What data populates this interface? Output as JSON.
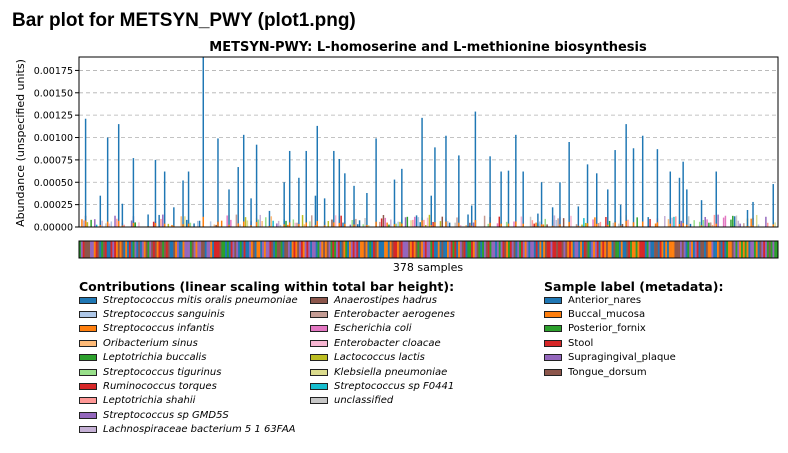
{
  "page_title": "Bar plot for METSYN_PWY (plot1.png)",
  "chart_data": {
    "type": "bar",
    "title": "METSYN-PWY: L-homoserine and L-methionine biosynthesis",
    "ylabel": "Abundance (unspecified units)",
    "xlabel": "378 samples",
    "ylim": [
      0,
      0.0019
    ],
    "yticks": [
      "0.00000",
      "0.00025",
      "0.00050",
      "0.00075",
      "0.00100",
      "0.00125",
      "0.00150",
      "0.00175"
    ],
    "ytick_values": [
      0,
      0.00025,
      0.0005,
      0.00075,
      0.001,
      0.00125,
      0.0015,
      0.00175
    ],
    "grid": "horizontal dashed",
    "n_samples": 378,
    "tall_bars_note": "approximate values of the dominant (Streptococcus mitis oralis pneumoniae) component; x as sample index 0-377",
    "tall_bars": [
      [
        2,
        0.00121
      ],
      [
        10,
        0.00035
      ],
      [
        14,
        0.001
      ],
      [
        20,
        0.00115
      ],
      [
        22,
        0.00026
      ],
      [
        28,
        0.00077
      ],
      [
        36,
        0.00014
      ],
      [
        40,
        0.00075
      ],
      [
        45,
        0.00062
      ],
      [
        50,
        0.00022
      ],
      [
        55,
        0.00052
      ],
      [
        58,
        0.00062
      ],
      [
        66,
        0.0019
      ],
      [
        74,
        0.00099
      ],
      [
        80,
        0.00042
      ],
      [
        85,
        0.00067
      ],
      [
        88,
        0.00103
      ],
      [
        92,
        0.00032
      ],
      [
        95,
        0.00092
      ],
      [
        102,
        0.00018
      ],
      [
        110,
        0.0005
      ],
      [
        113,
        0.00085
      ],
      [
        118,
        0.00055
      ],
      [
        122,
        0.00085
      ],
      [
        127,
        0.00035
      ],
      [
        128,
        0.00113
      ],
      [
        132,
        0.00032
      ],
      [
        137,
        0.00085
      ],
      [
        140,
        0.00076
      ],
      [
        143,
        0.0006
      ],
      [
        148,
        0.00046
      ],
      [
        155,
        0.00038
      ],
      [
        160,
        0.00099
      ],
      [
        170,
        0.00053
      ],
      [
        174,
        0.00065
      ],
      [
        182,
        0.00013
      ],
      [
        185,
        0.00122
      ],
      [
        190,
        0.00035
      ],
      [
        192,
        0.00089
      ],
      [
        198,
        0.00102
      ],
      [
        205,
        0.0008
      ],
      [
        212,
        0.00024
      ],
      [
        214,
        0.00129
      ],
      [
        222,
        0.00079
      ],
      [
        228,
        0.00062
      ],
      [
        232,
        0.00063
      ],
      [
        236,
        0.00103
      ],
      [
        240,
        0.00062
      ],
      [
        248,
        0.00015
      ],
      [
        250,
        0.0005
      ],
      [
        256,
        0.00022
      ],
      [
        260,
        0.0005
      ],
      [
        265,
        0.00095
      ],
      [
        270,
        0.00023
      ],
      [
        275,
        0.0007
      ],
      [
        280,
        0.0006
      ],
      [
        286,
        0.00042
      ],
      [
        290,
        0.00086
      ],
      [
        293,
        0.00025
      ],
      [
        296,
        0.00115
      ],
      [
        300,
        0.00088
      ],
      [
        305,
        0.00102
      ],
      [
        313,
        0.00087
      ],
      [
        320,
        0.00062
      ],
      [
        325,
        0.00055
      ],
      [
        327,
        0.00073
      ],
      [
        329,
        0.00042
      ],
      [
        337,
        0.0003
      ],
      [
        345,
        0.00062
      ],
      [
        355,
        0.00012
      ],
      [
        362,
        0.00019
      ],
      [
        365,
        0.00028
      ],
      [
        376,
        0.00048
      ]
    ],
    "legends": [
      {
        "title": "Contributions (linear scaling within total bar height):",
        "style": "italic",
        "items": [
          {
            "label": "Streptococcus mitis oralis pneumoniae",
            "color": "#1f77b4"
          },
          {
            "label": "Streptococcus sanguinis",
            "color": "#aec7e8"
          },
          {
            "label": "Streptococcus infantis",
            "color": "#ff7f0e"
          },
          {
            "label": "Oribacterium sinus",
            "color": "#ffbb78"
          },
          {
            "label": "Leptotrichia buccalis",
            "color": "#2ca02c"
          },
          {
            "label": "Streptococcus tigurinus",
            "color": "#98df8a"
          },
          {
            "label": "Ruminococcus torques",
            "color": "#d62728"
          },
          {
            "label": "Leptotrichia shahii",
            "color": "#ff9896"
          },
          {
            "label": "Streptococcus sp GMD5S",
            "color": "#9467bd"
          },
          {
            "label": "Lachnospiraceae bacterium 5 1 63FAA",
            "color": "#c5b0d5"
          }
        ]
      },
      {
        "title": "",
        "style": "italic",
        "items": [
          {
            "label": "Anaerostipes hadrus",
            "color": "#8c564b"
          },
          {
            "label": "Enterobacter aerogenes",
            "color": "#c49c94"
          },
          {
            "label": "Escherichia coli",
            "color": "#e377c2"
          },
          {
            "label": "Enterobacter cloacae",
            "color": "#f7b6d2"
          },
          {
            "label": "Lactococcus lactis",
            "color": "#bcbd22"
          },
          {
            "label": "Klebsiella pneumoniae",
            "color": "#dbdb8d"
          },
          {
            "label": "Streptococcus sp F0441",
            "color": "#17becf"
          },
          {
            "label": "unclassified",
            "color": "#c7c7c7"
          }
        ]
      },
      {
        "title": "Sample label (metadata):",
        "style": "normal",
        "items": [
          {
            "label": "Anterior_nares",
            "color": "#1f77b4"
          },
          {
            "label": "Buccal_mucosa",
            "color": "#ff7f0e"
          },
          {
            "label": "Posterior_fornix",
            "color": "#2ca02c"
          },
          {
            "label": "Stool",
            "color": "#d62728"
          },
          {
            "label": "Supragingival_plaque",
            "color": "#9467bd"
          },
          {
            "label": "Tongue_dorsum",
            "color": "#8c564b"
          }
        ]
      }
    ]
  }
}
